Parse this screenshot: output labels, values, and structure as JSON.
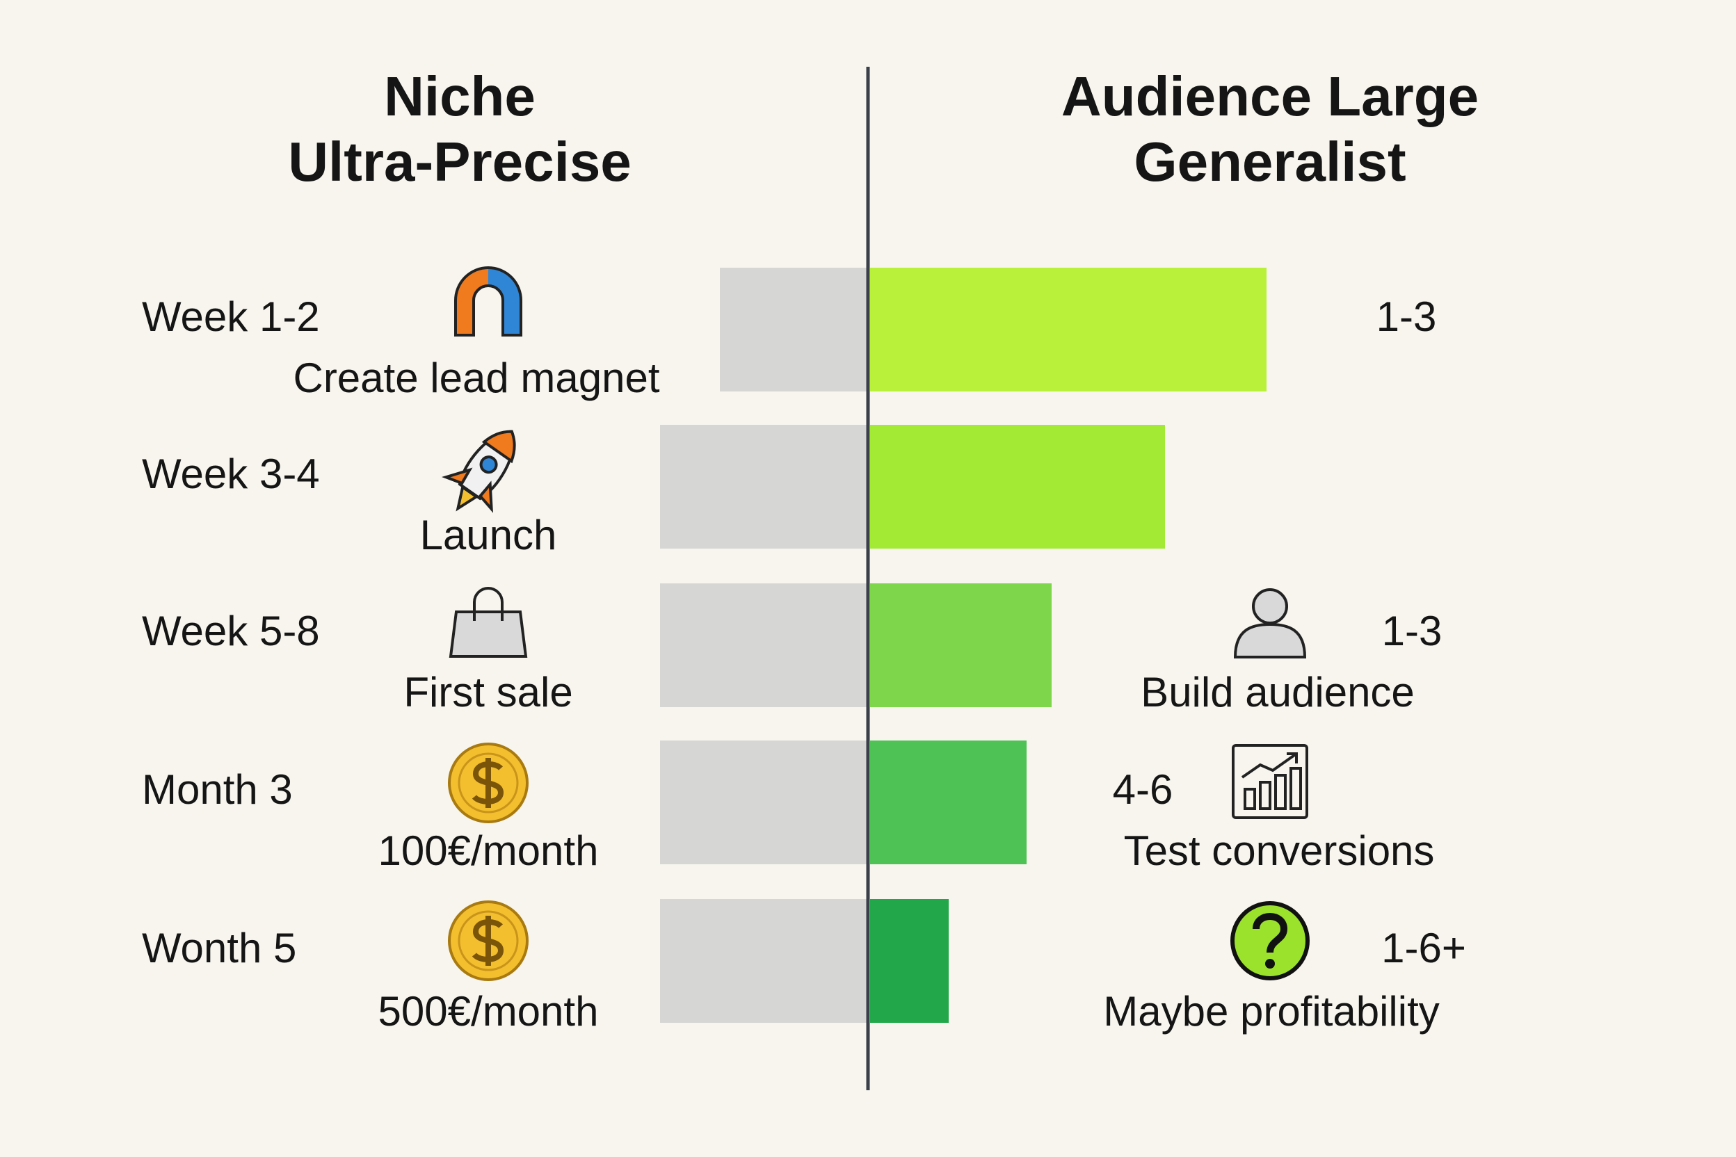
{
  "header": {
    "left_title": [
      "Niche",
      "Ultra-Precise"
    ],
    "right_title": [
      "Audience Large",
      "Generalist"
    ]
  },
  "rows": [
    {
      "period": "Week 1-2",
      "left_label": "Create lead magnet",
      "right_range": "1-3"
    },
    {
      "period": "Week 3-4",
      "left_label": "Launch"
    },
    {
      "period": "Week 5-8",
      "left_label": "First sale",
      "right_range": "1-3",
      "right_label": "Build audience"
    },
    {
      "period": "Month 3",
      "left_label": "100€/month",
      "right_range": "4-6",
      "right_label": "Test conversions"
    },
    {
      "period": "Wonth 5",
      "left_label": "500€/month",
      "right_range": "1-6+",
      "right_label": "Maybe profitability"
    }
  ]
}
